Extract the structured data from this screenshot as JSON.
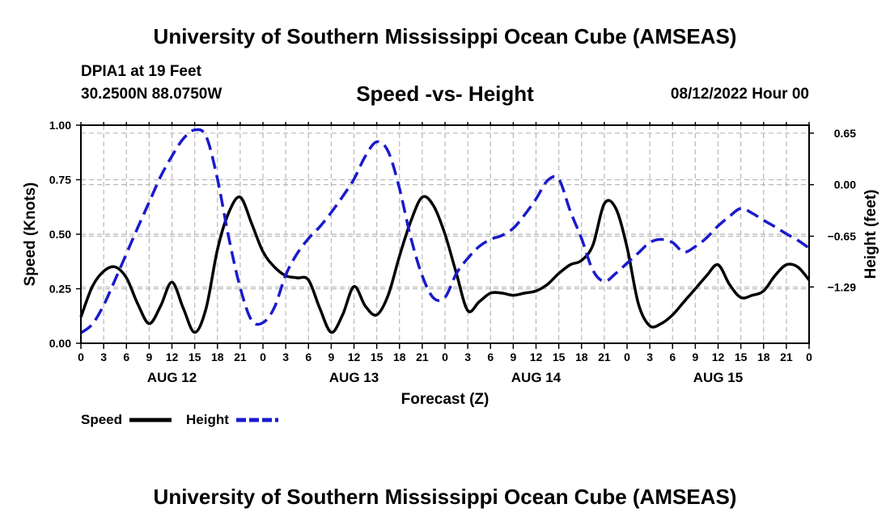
{
  "header": {
    "top_title": "University of Southern Mississippi Ocean Cube (AMSEAS)",
    "station": "DPIA1 at 19 Feet",
    "coords": "30.2500N  88.0750W",
    "plot_title": "Speed -vs- Height",
    "datetime": "08/12/2022 Hour 00",
    "bottom_title": "University of Southern Mississippi Ocean Cube (AMSEAS)"
  },
  "chart_data": {
    "type": "line",
    "title": "Speed -vs- Height",
    "xlabel": "Forecast (Z)",
    "ylabel": "Speed (Knots)",
    "y2label": "Height (feet)",
    "xlim": [
      0,
      96
    ],
    "ylim": [
      0,
      1
    ],
    "y2lim": [
      -2.0,
      0.75
    ],
    "x_ticks": [
      0,
      3,
      6,
      9,
      12,
      15,
      18,
      21,
      24,
      27,
      30,
      33,
      36,
      39,
      42,
      45,
      48,
      51,
      54,
      57,
      60,
      63,
      66,
      69,
      72,
      75,
      78,
      81,
      84,
      87,
      90,
      93,
      96
    ],
    "x_tick_labels": [
      "0",
      "3",
      "6",
      "9",
      "12",
      "15",
      "18",
      "21",
      "0",
      "3",
      "6",
      "9",
      "12",
      "15",
      "18",
      "21",
      "0",
      "3",
      "6",
      "9",
      "12",
      "15",
      "18",
      "21",
      "0",
      "3",
      "6",
      "9",
      "12",
      "15",
      "18",
      "21",
      "0"
    ],
    "day_labels": [
      {
        "x": 12,
        "label": "AUG 12"
      },
      {
        "x": 36,
        "label": "AUG 13"
      },
      {
        "x": 60,
        "label": "AUG 14"
      },
      {
        "x": 84,
        "label": "AUG 15"
      }
    ],
    "y_ticks": [
      0,
      0.25,
      0.5,
      0.75,
      1.0
    ],
    "y_tick_labels": [
      "0.00",
      "0.25",
      "0.50",
      "0.75",
      "1.00"
    ],
    "y2_ticks": [
      0.65,
      0.0,
      -0.65,
      -1.29
    ],
    "y2_tick_labels": [
      "0.65",
      "0.00",
      "−0.65",
      "−1.29"
    ],
    "grid": true,
    "legend": {
      "position": "bottom-left",
      "items": [
        {
          "name": "Speed",
          "color": "#000000",
          "style": "solid"
        },
        {
          "name": "Height",
          "color": "#1a1acc",
          "style": "dashed"
        }
      ]
    },
    "series": [
      {
        "name": "Speed",
        "axis": "left",
        "color": "#000000",
        "style": "solid",
        "x": [
          0,
          1.5,
          3,
          4.5,
          6,
          7.5,
          9,
          10.5,
          12,
          13.5,
          15,
          16.5,
          18,
          19.5,
          21,
          22.5,
          24,
          25.5,
          27,
          28.5,
          30,
          31.5,
          33,
          34.5,
          36,
          37.5,
          39,
          40.5,
          42,
          43.5,
          45,
          46.5,
          48,
          49.5,
          51,
          52.5,
          54,
          55.5,
          57,
          58.5,
          60,
          61.5,
          63,
          64.5,
          66,
          67.5,
          69,
          70.5,
          72,
          73.5,
          75,
          76.5,
          78,
          79.5,
          81,
          82.5,
          84,
          85.5,
          87,
          88.5,
          90,
          91.5,
          93,
          94.5,
          96
        ],
        "values": [
          0.12,
          0.26,
          0.33,
          0.35,
          0.3,
          0.18,
          0.09,
          0.17,
          0.28,
          0.16,
          0.05,
          0.16,
          0.43,
          0.6,
          0.67,
          0.55,
          0.42,
          0.35,
          0.31,
          0.3,
          0.29,
          0.16,
          0.05,
          0.13,
          0.26,
          0.17,
          0.13,
          0.22,
          0.4,
          0.56,
          0.67,
          0.63,
          0.5,
          0.32,
          0.15,
          0.19,
          0.23,
          0.23,
          0.22,
          0.23,
          0.24,
          0.27,
          0.32,
          0.36,
          0.38,
          0.45,
          0.64,
          0.62,
          0.44,
          0.18,
          0.08,
          0.09,
          0.13,
          0.19,
          0.25,
          0.31,
          0.36,
          0.27,
          0.21,
          0.22,
          0.24,
          0.31,
          0.36,
          0.35,
          0.29
        ]
      },
      {
        "name": "Height",
        "axis": "right",
        "color": "#1a1acc",
        "style": "dashed",
        "x": [
          0,
          1.5,
          3,
          4.5,
          6,
          7.5,
          9,
          10.5,
          12,
          13.5,
          15,
          16.5,
          18,
          19.5,
          21,
          22.5,
          24,
          25.5,
          27,
          28.5,
          30,
          31.5,
          33,
          34.5,
          36,
          37.5,
          39,
          40.5,
          42,
          43.5,
          45,
          46.5,
          48,
          49.5,
          51,
          52.5,
          54,
          55.5,
          57,
          58.5,
          60,
          61.5,
          63,
          64.5,
          66,
          67.5,
          69,
          70.5,
          72,
          73.5,
          75,
          76.5,
          78,
          79.5,
          81,
          82.5,
          84,
          85.5,
          87,
          88.5,
          90,
          91.5,
          93,
          94.5,
          96
        ],
        "values": [
          -1.87,
          -1.76,
          -1.52,
          -1.2,
          -0.87,
          -0.54,
          -0.22,
          0.1,
          0.36,
          0.58,
          0.69,
          0.61,
          0.07,
          -0.67,
          -1.3,
          -1.71,
          -1.74,
          -1.55,
          -1.14,
          -0.87,
          -0.68,
          -0.53,
          -0.35,
          -0.15,
          0.07,
          0.36,
          0.54,
          0.42,
          -0.05,
          -0.67,
          -1.15,
          -1.43,
          -1.42,
          -1.12,
          -0.93,
          -0.78,
          -0.69,
          -0.64,
          -0.55,
          -0.38,
          -0.18,
          0.05,
          0.07,
          -0.33,
          -0.68,
          -1.08,
          -1.22,
          -1.12,
          -0.99,
          -0.86,
          -0.73,
          -0.69,
          -0.73,
          -0.85,
          -0.78,
          -0.67,
          -0.52,
          -0.4,
          -0.3,
          -0.36,
          -0.45,
          -0.53,
          -0.62,
          -0.7,
          -0.8
        ]
      }
    ]
  }
}
